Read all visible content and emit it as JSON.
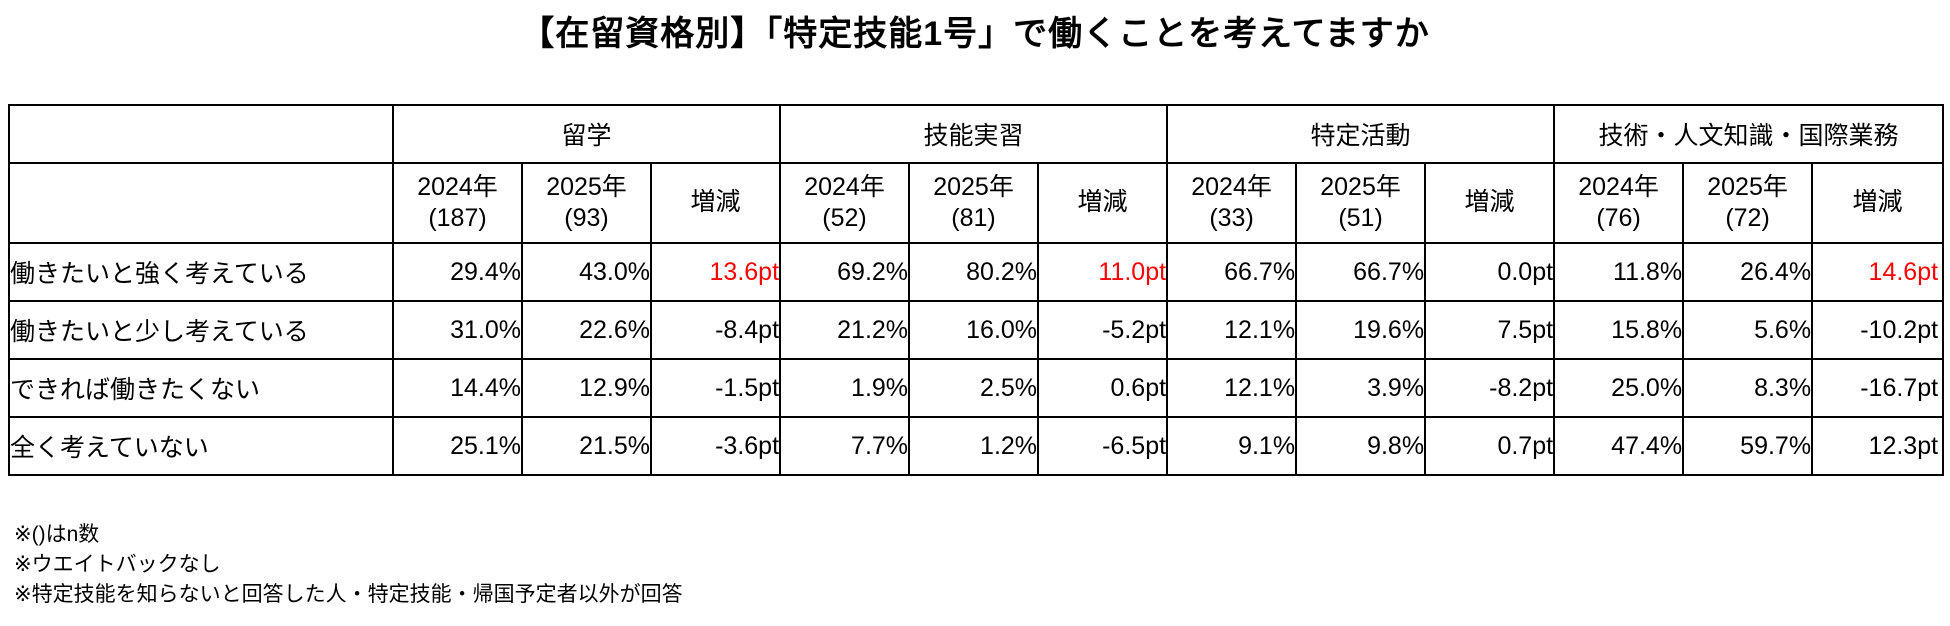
{
  "title": "【在留資格別】「特定技能1号」で働くことを考えてますか",
  "table": {
    "groups": [
      {
        "label": "留学",
        "y1": "2024年",
        "n1": "(187)",
        "y2": "2025年",
        "n2": "(93)",
        "diff_label": "増減"
      },
      {
        "label": "技能実習",
        "y1": "2024年",
        "n1": "(52)",
        "y2": "2025年",
        "n2": "(81)",
        "diff_label": "増減"
      },
      {
        "label": "特定活動",
        "y1": "2024年",
        "n1": "(33)",
        "y2": "2025年",
        "n2": "(51)",
        "diff_label": "増減"
      },
      {
        "label": "技術・人文知識・国際業務",
        "y1": "2024年",
        "n1": "(76)",
        "y2": "2025年",
        "n2": "(72)",
        "diff_label": "増減"
      }
    ],
    "rows": [
      {
        "label": "働きたいと強く考えている",
        "values": [
          {
            "text": "29.4%"
          },
          {
            "text": "43.0%"
          },
          {
            "text": "13.6pt",
            "highlight": true
          },
          {
            "text": "69.2%"
          },
          {
            "text": "80.2%"
          },
          {
            "text": "11.0pt",
            "highlight": true
          },
          {
            "text": "66.7%"
          },
          {
            "text": "66.7%"
          },
          {
            "text": "0.0pt"
          },
          {
            "text": "11.8%"
          },
          {
            "text": "26.4%"
          },
          {
            "text": "14.6pt",
            "highlight": true
          }
        ]
      },
      {
        "label": "働きたいと少し考えている",
        "values": [
          {
            "text": "31.0%"
          },
          {
            "text": "22.6%"
          },
          {
            "text": "-8.4pt"
          },
          {
            "text": "21.2%"
          },
          {
            "text": "16.0%"
          },
          {
            "text": "-5.2pt"
          },
          {
            "text": "12.1%"
          },
          {
            "text": "19.6%"
          },
          {
            "text": "7.5pt"
          },
          {
            "text": "15.8%"
          },
          {
            "text": "5.6%"
          },
          {
            "text": "-10.2pt"
          }
        ]
      },
      {
        "label": "できれば働きたくない",
        "values": [
          {
            "text": "14.4%"
          },
          {
            "text": "12.9%"
          },
          {
            "text": "-1.5pt"
          },
          {
            "text": "1.9%"
          },
          {
            "text": "2.5%"
          },
          {
            "text": "0.6pt"
          },
          {
            "text": "12.1%"
          },
          {
            "text": "3.9%"
          },
          {
            "text": "-8.2pt"
          },
          {
            "text": "25.0%"
          },
          {
            "text": "8.3%"
          },
          {
            "text": "-16.7pt"
          }
        ]
      },
      {
        "label": "全く考えていない",
        "values": [
          {
            "text": "25.1%"
          },
          {
            "text": "21.5%"
          },
          {
            "text": "-3.6pt"
          },
          {
            "text": "7.7%"
          },
          {
            "text": "1.2%"
          },
          {
            "text": "-6.5pt"
          },
          {
            "text": "9.1%"
          },
          {
            "text": "9.8%"
          },
          {
            "text": "0.7pt"
          },
          {
            "text": "47.4%"
          },
          {
            "text": "59.7%"
          },
          {
            "text": "12.3pt"
          }
        ]
      }
    ]
  },
  "footnotes": [
    "※()はn数",
    "※ウエイトバックなし",
    "※特定技能を知らないと回答した人・特定技能・帰国予定者以外が回答"
  ],
  "colors": {
    "text": "#000000",
    "border": "#000000",
    "highlight": "#ff0000",
    "background": "#ffffff"
  },
  "chart_data": {
    "type": "table",
    "title": "【在留資格別】「特定技能1号」で働くことを考えてますか",
    "row_labels": [
      "働きたいと強く考えている",
      "働きたいと少し考えている",
      "できれば働きたくない",
      "全く考えていない"
    ],
    "column_groups": [
      {
        "name": "留学",
        "n_2024": 187,
        "n_2025": 93,
        "pct_2024": [
          29.4,
          31.0,
          14.4,
          25.1
        ],
        "pct_2025": [
          43.0,
          22.6,
          12.9,
          21.5
        ],
        "diff_pt": [
          13.6,
          -8.4,
          -1.5,
          -3.6
        ]
      },
      {
        "name": "技能実習",
        "n_2024": 52,
        "n_2025": 81,
        "pct_2024": [
          69.2,
          21.2,
          1.9,
          7.7
        ],
        "pct_2025": [
          80.2,
          16.0,
          2.5,
          1.2
        ],
        "diff_pt": [
          11.0,
          -5.2,
          0.6,
          -6.5
        ]
      },
      {
        "name": "特定活動",
        "n_2024": 33,
        "n_2025": 51,
        "pct_2024": [
          66.7,
          12.1,
          12.1,
          9.1
        ],
        "pct_2025": [
          66.7,
          19.6,
          3.9,
          9.8
        ],
        "diff_pt": [
          0.0,
          7.5,
          -8.2,
          0.7
        ]
      },
      {
        "name": "技術・人文知識・国際業務",
        "n_2024": 76,
        "n_2025": 72,
        "pct_2024": [
          11.8,
          15.8,
          25.0,
          47.4
        ],
        "pct_2025": [
          26.4,
          5.6,
          8.3,
          59.7
        ],
        "diff_pt": [
          14.6,
          -10.2,
          -16.7,
          12.3
        ]
      }
    ],
    "highlighted_diff_cells": [
      {
        "group": "留学",
        "row": "働きたいと強く考えている",
        "value_pt": 13.6
      },
      {
        "group": "技能実習",
        "row": "働きたいと強く考えている",
        "value_pt": 11.0
      },
      {
        "group": "技術・人文知識・国際業務",
        "row": "働きたいと強く考えている",
        "value_pt": 14.6
      }
    ],
    "legend_position": "none",
    "grid": true
  }
}
